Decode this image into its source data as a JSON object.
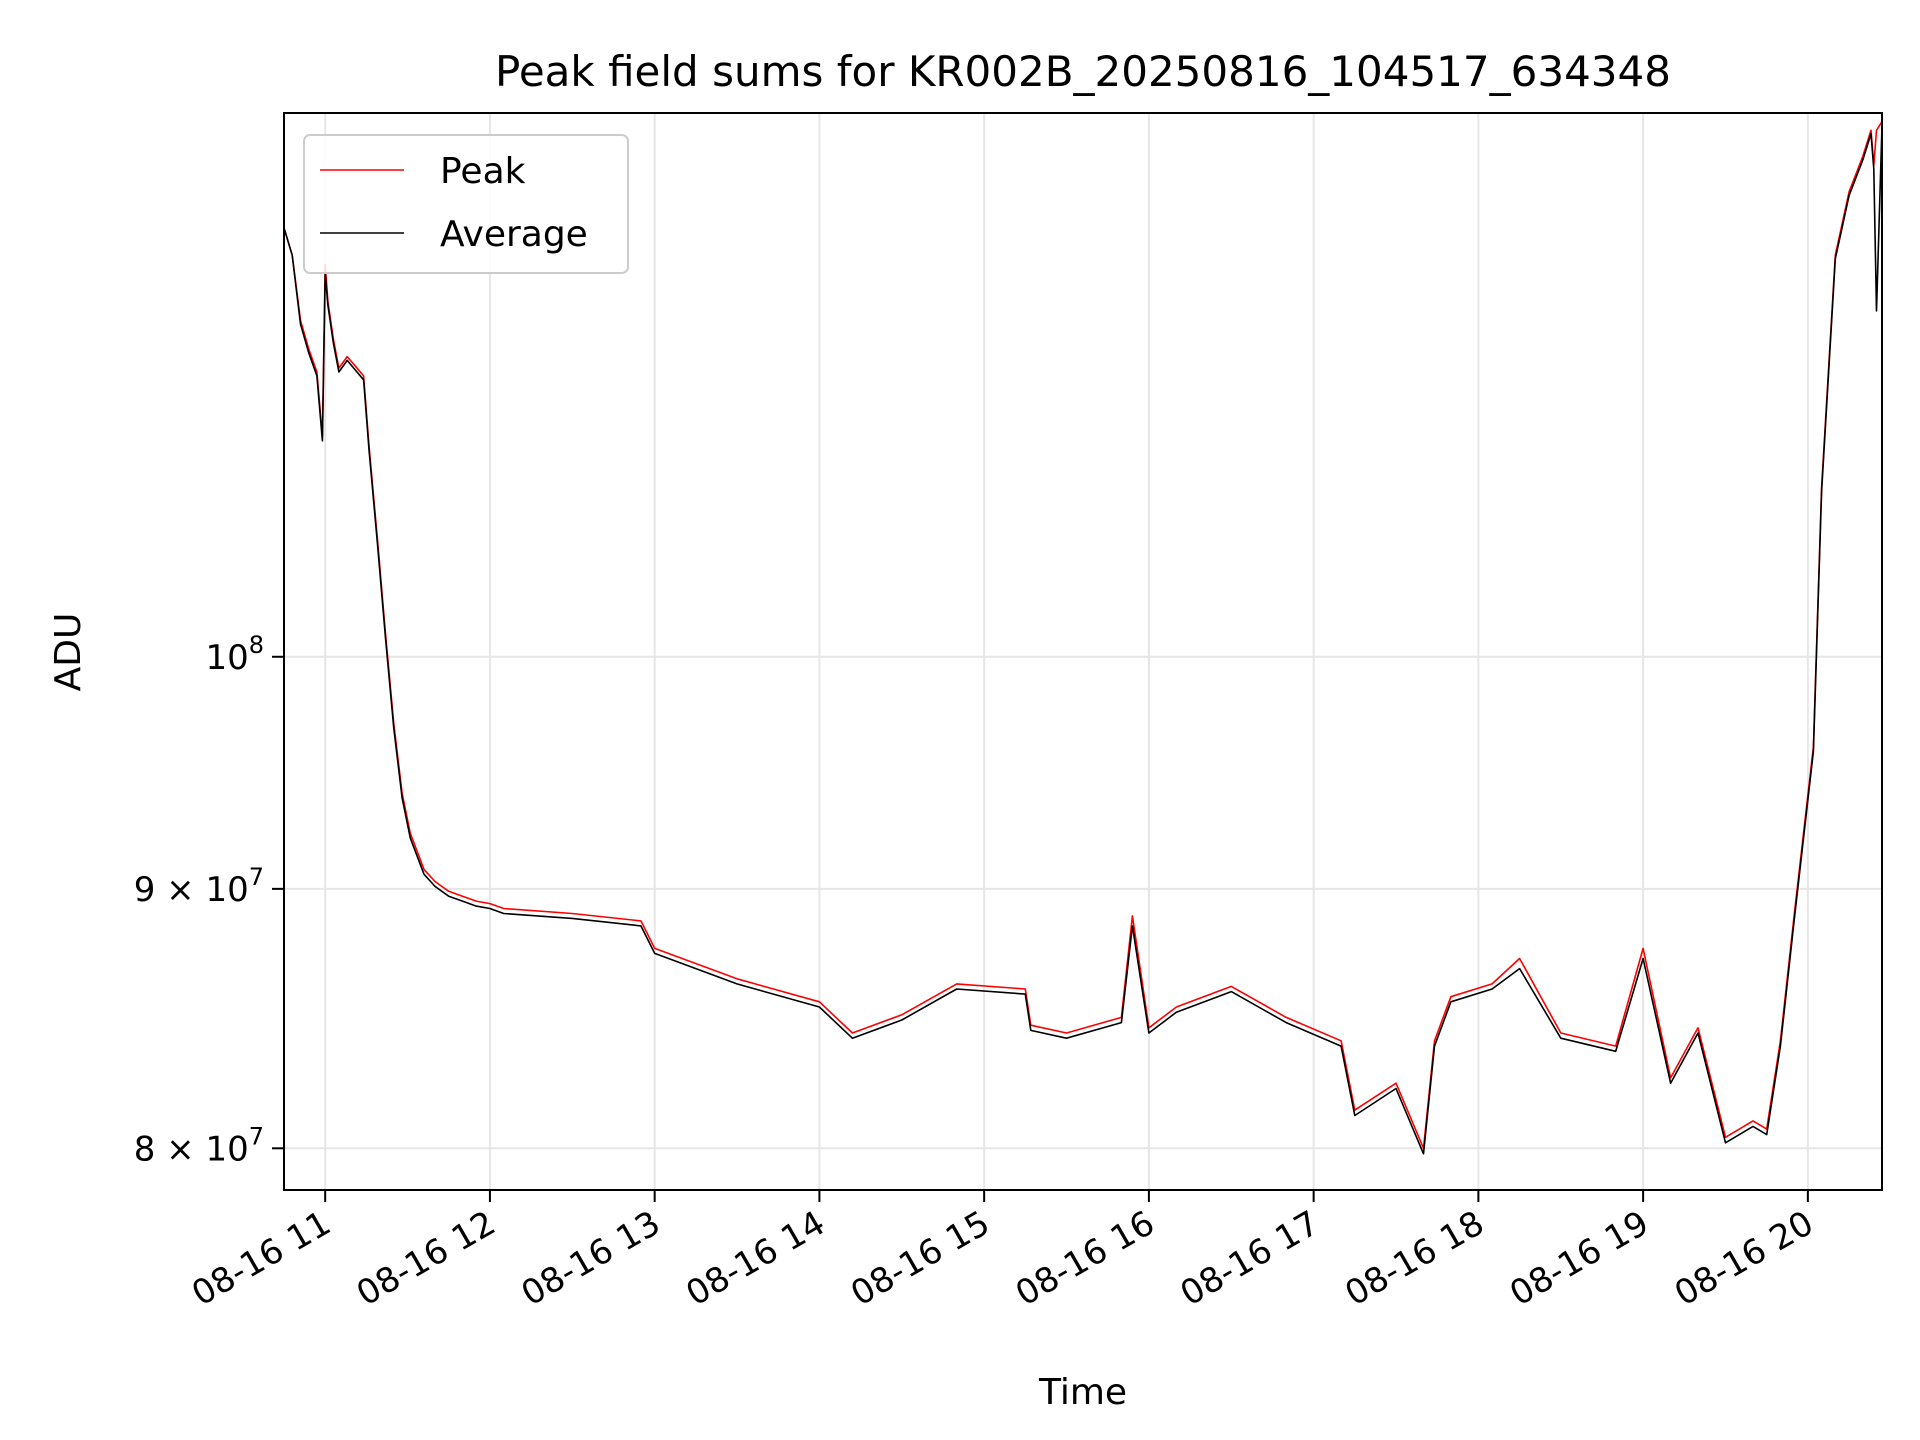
{
  "chart_data": {
    "type": "line",
    "title": "Peak field sums for KR002B_20250816_104517_634348",
    "xlabel": "Time",
    "ylabel": "ADU",
    "y_scale": "log",
    "grid": true,
    "legend_position": "upper-left",
    "xlim": [
      "2025-08-16 10:45",
      "2025-08-16 20:27"
    ],
    "ylim": [
      78500000,
      128000000
    ],
    "x_ticks": [
      {
        "x": "2025-08-16 11:00",
        "label": "08-16 11"
      },
      {
        "x": "2025-08-16 12:00",
        "label": "08-16 12"
      },
      {
        "x": "2025-08-16 13:00",
        "label": "08-16 13"
      },
      {
        "x": "2025-08-16 14:00",
        "label": "08-16 14"
      },
      {
        "x": "2025-08-16 15:00",
        "label": "08-16 15"
      },
      {
        "x": "2025-08-16 16:00",
        "label": "08-16 16"
      },
      {
        "x": "2025-08-16 17:00",
        "label": "08-16 17"
      },
      {
        "x": "2025-08-16 18:00",
        "label": "08-16 18"
      },
      {
        "x": "2025-08-16 19:00",
        "label": "08-16 19"
      },
      {
        "x": "2025-08-16 20:00",
        "label": "08-16 20"
      }
    ],
    "y_ticks": [
      {
        "y": 80000000,
        "label": "8 × 10",
        "exponent": "7"
      },
      {
        "y": 90000000,
        "label": "9 × 10",
        "exponent": "7"
      },
      {
        "y": 100000000,
        "label": "10",
        "exponent": "8"
      }
    ],
    "x": [
      "10:45",
      "10:48",
      "10:51",
      "10:54",
      "10:57",
      "10:59",
      "11:00",
      "11:01",
      "11:03",
      "11:05",
      "11:08",
      "11:11",
      "11:14",
      "11:16",
      "11:19",
      "11:22",
      "11:25",
      "11:28",
      "11:31",
      "11:34",
      "11:36",
      "11:40",
      "11:45",
      "11:50",
      "11:55",
      "12:00",
      "12:05",
      "12:30",
      "12:55",
      "13:00",
      "13:30",
      "14:00",
      "14:12",
      "14:30",
      "14:50",
      "15:15",
      "15:17",
      "15:30",
      "15:50",
      "15:54",
      "16:00",
      "16:10",
      "16:30",
      "16:50",
      "17:10",
      "17:15",
      "17:30",
      "17:40",
      "17:44",
      "17:50",
      "18:05",
      "18:15",
      "18:30",
      "18:50",
      "19:00",
      "19:10",
      "19:20",
      "19:30",
      "19:40",
      "19:45",
      "19:50",
      "19:55",
      "20:02",
      "20:05",
      "20:10",
      "20:15",
      "20:20",
      "20:23",
      "20:24",
      "20:25",
      "20:27"
    ],
    "series": [
      {
        "name": "Peak",
        "color": "#ff0000",
        "values": [
          121500000,
          120000000,
          116500000,
          115000000,
          113800000,
          110500000,
          119500000,
          117500000,
          115500000,
          114000000,
          114600000,
          114100000,
          113600000,
          110000000,
          105500000,
          101000000,
          97000000,
          94000000,
          92300000,
          91400000,
          90800000,
          90300000,
          89900000,
          89700000,
          89500000,
          89400000,
          89200000,
          89000000,
          88700000,
          87600000,
          86400000,
          85500000,
          84300000,
          85000000,
          86200000,
          86000000,
          84600000,
          84300000,
          84900000,
          88900000,
          84500000,
          85300000,
          86100000,
          84900000,
          84000000,
          81400000,
          82400000,
          80000000,
          84000000,
          85700000,
          86200000,
          87200000,
          84300000,
          83800000,
          87600000,
          82600000,
          84500000,
          80400000,
          81000000,
          80700000,
          84000000,
          88900000,
          96000000,
          108000000,
          120000000,
          123500000,
          125500000,
          127000000,
          125000000,
          127000000,
          127500000
        ]
      },
      {
        "name": "Average",
        "color": "#000000",
        "values": [
          121500000,
          120000000,
          116300000,
          114800000,
          113600000,
          110300000,
          119000000,
          117300000,
          115300000,
          113800000,
          114400000,
          113900000,
          113400000,
          109800000,
          105300000,
          100800000,
          96800000,
          93800000,
          92100000,
          91200000,
          90600000,
          90100000,
          89700000,
          89500000,
          89300000,
          89200000,
          89000000,
          88800000,
          88500000,
          87400000,
          86200000,
          85300000,
          84100000,
          84800000,
          86000000,
          85800000,
          84400000,
          84100000,
          84700000,
          88500000,
          84300000,
          85100000,
          85900000,
          84700000,
          83800000,
          81200000,
          82200000,
          79800000,
          83800000,
          85500000,
          86000000,
          86800000,
          84100000,
          83600000,
          87200000,
          82400000,
          84300000,
          80200000,
          80800000,
          80500000,
          83800000,
          88700000,
          95800000,
          107800000,
          119800000,
          123300000,
          125300000,
          126800000,
          124800000,
          117000000,
          127300000
        ]
      }
    ]
  }
}
